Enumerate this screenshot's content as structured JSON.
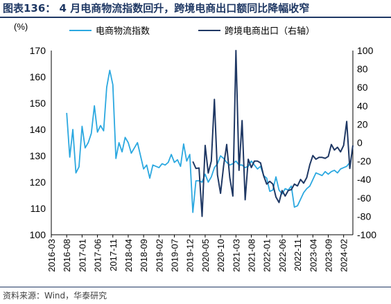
{
  "figure": {
    "title": "图表136：  4 月电商物流指数回升，跨境电商出口额同比降幅收窄",
    "source": "资料来源：Wind，华泰研究"
  },
  "colors": {
    "frame": "#1f3864",
    "axis": "#000000"
  },
  "chart_data": {
    "type": "line",
    "left_axis_unit": "(%)",
    "ylim_left": [
      100,
      170
    ],
    "yticks_left": [
      100,
      110,
      120,
      130,
      140,
      150,
      160,
      170
    ],
    "ylim_right": [
      -100,
      100
    ],
    "yticks_right": [
      -100,
      -80,
      -60,
      -40,
      -20,
      0,
      20,
      40,
      60,
      80,
      100
    ],
    "x_tick_labels": [
      "2016-03",
      "2016-08",
      "2017-01",
      "2017-06",
      "2017-11",
      "2018-04",
      "2018-09",
      "2019-02",
      "2019-07",
      "2019-12",
      "2020-05",
      "2020-10",
      "2021-03",
      "2021-08",
      "2022-01",
      "2022-06",
      "2022-11",
      "2023-04",
      "2023-09",
      "2024-02"
    ],
    "series": [
      {
        "name": "电商物流指数",
        "axis": "left",
        "color": "#2ba8e0",
        "points": [
          [
            "2016-08",
            146.3
          ],
          [
            "2016-09",
            129.5
          ],
          [
            "2016-10",
            140.0
          ],
          [
            "2016-11",
            123.5
          ],
          [
            "2016-12",
            125.8
          ],
          [
            "2017-01",
            141.2
          ],
          [
            "2017-02",
            133.0
          ],
          [
            "2017-03",
            135.0
          ],
          [
            "2017-04",
            138.5
          ],
          [
            "2017-05",
            149.0
          ],
          [
            "2017-06",
            139.0
          ],
          [
            "2017-07",
            141.5
          ],
          [
            "2017-08",
            139.5
          ],
          [
            "2017-09",
            156.0
          ],
          [
            "2017-10",
            162.5
          ],
          [
            "2017-11",
            157.0
          ],
          [
            "2017-12",
            129.0
          ],
          [
            "2018-01",
            135.0
          ],
          [
            "2018-02",
            131.5
          ],
          [
            "2018-03",
            137.0
          ],
          [
            "2018-04",
            135.0
          ],
          [
            "2018-05",
            131.0
          ],
          [
            "2018-06",
            133.0
          ],
          [
            "2018-07",
            135.0
          ],
          [
            "2018-08",
            130.0
          ],
          [
            "2018-09",
            125.0
          ],
          [
            "2018-10",
            126.5
          ],
          [
            "2018-11",
            121.5
          ],
          [
            "2018-12",
            126.5
          ],
          [
            "2019-01",
            126.0
          ],
          [
            "2019-02",
            125.5
          ],
          [
            "2019-03",
            127.0
          ],
          [
            "2019-04",
            126.5
          ],
          [
            "2019-05",
            127.5
          ],
          [
            "2019-06",
            130.5
          ],
          [
            "2019-07",
            127.5
          ],
          [
            "2019-08",
            128.5
          ],
          [
            "2019-09",
            126.0
          ],
          [
            "2019-10",
            134.5
          ],
          [
            "2019-11",
            128.0
          ],
          [
            "2019-12",
            130.5
          ],
          [
            "2020-01",
            108.5
          ],
          [
            "2020-02",
            120.5
          ],
          [
            "2020-03",
            120.5
          ],
          [
            "2020-04",
            120.0
          ],
          [
            "2020-05",
            123.0
          ],
          [
            "2020-06",
            120.0
          ],
          [
            "2020-07",
            122.0
          ],
          [
            "2020-08",
            125.5
          ],
          [
            "2020-09",
            127.0
          ],
          [
            "2020-10",
            130.0
          ],
          [
            "2020-11",
            129.0
          ],
          [
            "2020-12",
            127.5
          ],
          [
            "2021-01",
            126.5
          ],
          [
            "2021-02",
            127.0
          ],
          [
            "2021-03",
            128.0
          ],
          [
            "2021-04",
            126.5
          ],
          [
            "2021-05",
            126.5
          ],
          [
            "2021-06",
            125.5
          ],
          [
            "2021-07",
            126.0
          ],
          [
            "2021-08",
            128.0
          ],
          [
            "2021-09",
            126.5
          ],
          [
            "2021-10",
            125.0
          ],
          [
            "2021-11",
            126.0
          ],
          [
            "2021-12",
            122.5
          ],
          [
            "2022-01",
            121.5
          ],
          [
            "2022-02",
            116.5
          ],
          [
            "2022-03",
            117.0
          ],
          [
            "2022-04",
            122.0
          ],
          [
            "2022-05",
            117.0
          ],
          [
            "2022-06",
            115.5
          ],
          [
            "2022-07",
            117.5
          ],
          [
            "2022-08",
            117.0
          ],
          [
            "2022-09",
            118.5
          ],
          [
            "2022-10",
            110.5
          ],
          [
            "2022-11",
            111.0
          ],
          [
            "2022-12",
            113.5
          ],
          [
            "2023-01",
            116.0
          ],
          [
            "2023-02",
            117.5
          ],
          [
            "2023-03",
            118.5
          ],
          [
            "2023-04",
            121.0
          ],
          [
            "2023-05",
            123.5
          ],
          [
            "2023-06",
            123.0
          ],
          [
            "2023-07",
            122.5
          ],
          [
            "2023-08",
            124.0
          ],
          [
            "2023-09",
            123.0
          ],
          [
            "2023-10",
            124.0
          ],
          [
            "2023-11",
            124.5
          ],
          [
            "2023-12",
            123.5
          ],
          [
            "2024-01",
            125.0
          ],
          [
            "2024-02",
            125.5
          ],
          [
            "2024-03",
            126.0
          ],
          [
            "2024-04",
            127.5
          ]
        ]
      },
      {
        "name": "跨境电商出口（右轴）",
        "axis": "right",
        "color": "#1f3864",
        "points": [
          [
            "2020-01",
            -20.5
          ],
          [
            "2020-02",
            -28.0
          ],
          [
            "2020-03",
            -27.5
          ],
          [
            "2020-04",
            -80.0
          ],
          [
            "2020-05",
            -3.0
          ],
          [
            "2020-06",
            -33.0
          ],
          [
            "2020-07",
            -20.0
          ],
          [
            "2020-08",
            47.0
          ],
          [
            "2020-09",
            -35.0
          ],
          [
            "2020-10",
            -55.0
          ],
          [
            "2020-11",
            -25.0
          ],
          [
            "2020-12",
            -2.0
          ],
          [
            "2021-01",
            -38.0
          ],
          [
            "2021-02",
            -58.0
          ],
          [
            "2021-03",
            100.0
          ],
          [
            "2021-04",
            -30.0
          ],
          [
            "2021-05",
            24.0
          ],
          [
            "2021-06",
            -62.0
          ],
          [
            "2021-07",
            -18.0
          ],
          [
            "2021-08",
            -27.0
          ],
          [
            "2021-09",
            -20.0
          ],
          [
            "2021-10",
            -20.0
          ],
          [
            "2021-11",
            -22.0
          ],
          [
            "2021-12",
            -36.0
          ],
          [
            "2022-01",
            -45.0
          ],
          [
            "2022-02",
            -42.0
          ],
          [
            "2022-03",
            -45.0
          ],
          [
            "2022-04",
            -59.0
          ],
          [
            "2022-05",
            -65.0
          ],
          [
            "2022-06",
            -52.0
          ],
          [
            "2022-07",
            -58.0
          ],
          [
            "2022-08",
            -52.0
          ],
          [
            "2022-09",
            -51.0
          ],
          [
            "2022-10",
            -45.0
          ],
          [
            "2022-11",
            -47.0
          ],
          [
            "2022-12",
            -40.0
          ],
          [
            "2023-01",
            -44.0
          ],
          [
            "2023-02",
            -38.0
          ],
          [
            "2023-03",
            -24.0
          ],
          [
            "2023-04",
            -14.0
          ],
          [
            "2023-05",
            -18.0
          ],
          [
            "2023-06",
            -16.0
          ],
          [
            "2023-07",
            -16.0
          ],
          [
            "2023-08",
            -17.0
          ],
          [
            "2023-09",
            -15.0
          ],
          [
            "2023-10",
            -2.0
          ],
          [
            "2023-11",
            -8.0
          ],
          [
            "2023-12",
            -5.0
          ],
          [
            "2024-01",
            -10.0
          ],
          [
            "2024-02",
            -3.0
          ],
          [
            "2024-03",
            23.0
          ],
          [
            "2024-04",
            -28.0
          ],
          [
            "2024-05",
            -3.0
          ]
        ]
      }
    ]
  }
}
